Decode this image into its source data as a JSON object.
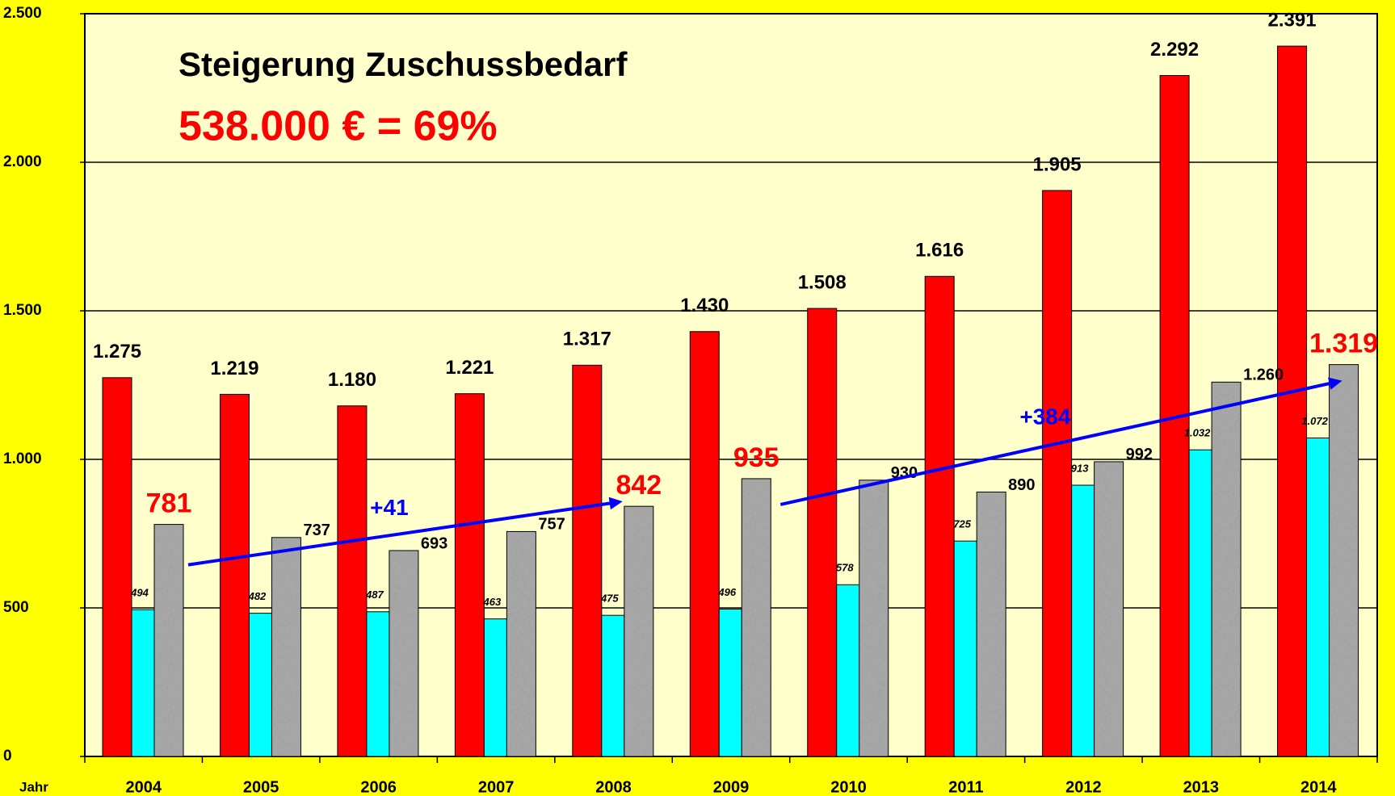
{
  "chart_data": {
    "type": "bar",
    "title": "Steigerung Zuschussbedarf",
    "subtitle": "538.000 € = 69%",
    "x_label": "Jahr",
    "categories": [
      "2004",
      "2005",
      "2006",
      "2007",
      "2008",
      "2009",
      "2010",
      "2011",
      "2012",
      "2013",
      "2014"
    ],
    "series": [
      {
        "color": "#ff0000",
        "values": [
          1275,
          1219,
          1180,
          1221,
          1317,
          1430,
          1508,
          1616,
          1905,
          2292,
          2391
        ],
        "value_labels": [
          "1.275",
          "1.219",
          "1.180",
          "1.221",
          "1.317",
          "1.430",
          "1.508",
          "1.616",
          "1.905",
          "2.292",
          "2.391"
        ]
      },
      {
        "color": "#00ffff",
        "values": [
          494,
          482,
          487,
          463,
          475,
          496,
          578,
          725,
          913,
          1032,
          1072
        ],
        "value_labels": [
          "494",
          "482",
          "487",
          "463",
          "475",
          "496",
          "578",
          "725",
          "913",
          "1.032",
          "1.072"
        ]
      },
      {
        "color": "#a8a8a8",
        "values": [
          781,
          737,
          693,
          757,
          842,
          935,
          930,
          890,
          992,
          1260,
          1319
        ],
        "value_labels": [
          "781",
          "737",
          "693",
          "757",
          "842",
          "935",
          "930",
          "890",
          "992",
          "1.260",
          "1.319"
        ],
        "value_label_colors": [
          "#ff0000",
          "#000000",
          "#000000",
          "#000000",
          "#ff0000",
          "#ff0000",
          "#000000",
          "#000000",
          "#000000",
          "#000000",
          "#ff0000"
        ]
      }
    ],
    "annotations": [
      {
        "text": "+41",
        "color": "#0000ff"
      },
      {
        "text": "+384",
        "color": "#0000ff"
      }
    ],
    "ylim": [
      0,
      2500
    ],
    "yticks": [
      0,
      500,
      {
        "value": 1000,
        "label": "1.000"
      },
      {
        "value": 1500,
        "label": "1.500"
      },
      {
        "value": 2000,
        "label": "2.000"
      },
      {
        "value": 2500,
        "label": "2.500"
      }
    ],
    "grid": true
  }
}
